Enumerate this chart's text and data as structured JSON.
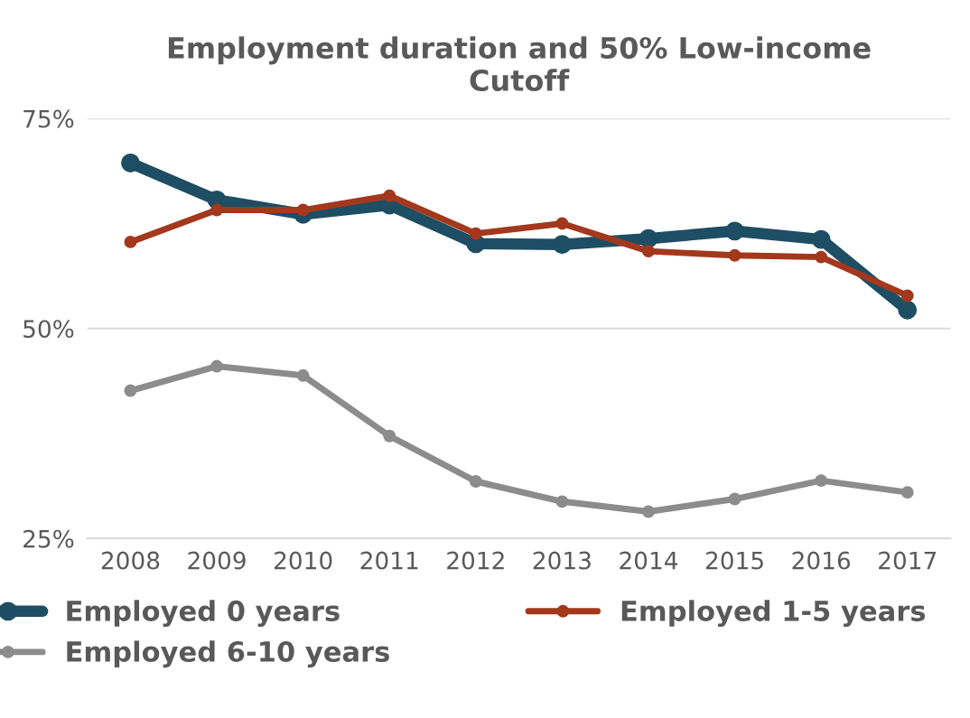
{
  "chart_data": {
    "type": "line",
    "title": "Employment duration and 50% Low-income\nCutoff",
    "categories": [
      "2008",
      "2009",
      "2010",
      "2011",
      "2012",
      "2013",
      "2014",
      "2015",
      "2016",
      "2017"
    ],
    "series": [
      {
        "name": "Employed 0 years",
        "color": "#1d4e63",
        "values": [
          69.7,
          65.3,
          63.6,
          64.7,
          60.1,
          60.0,
          60.7,
          61.6,
          60.6,
          52.2
        ]
      },
      {
        "name": "Employed 1-5 years",
        "color": "#a3381d",
        "values": [
          60.3,
          64.1,
          64.1,
          65.8,
          61.3,
          62.5,
          59.2,
          58.7,
          58.5,
          53.9
        ]
      },
      {
        "name": "Employed 6-10 years",
        "color": "#8c8c8c",
        "values": [
          42.6,
          45.5,
          44.4,
          37.2,
          31.8,
          29.4,
          28.2,
          29.7,
          31.9,
          30.5
        ]
      }
    ],
    "ylim": [
      25,
      75
    ],
    "yticks": [
      {
        "value": 25,
        "label": "25%"
      },
      {
        "value": 50,
        "label": "50%"
      },
      {
        "value": 75,
        "label": "75%"
      }
    ],
    "grid": "y",
    "legend": "bottom",
    "marker": "circle",
    "line_style": "solid"
  }
}
